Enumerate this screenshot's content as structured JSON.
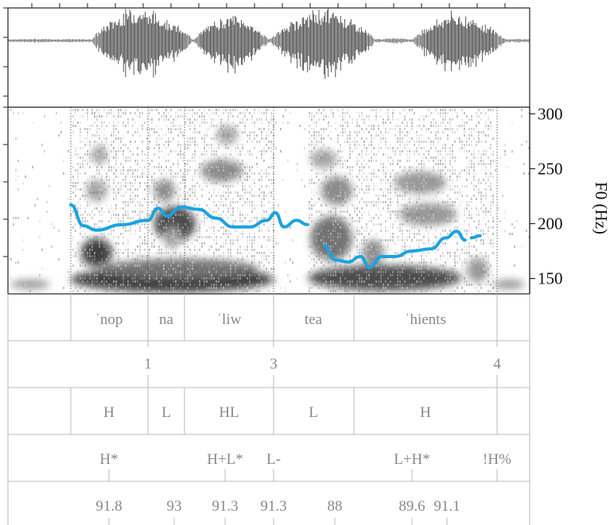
{
  "f0_axis": {
    "title": "F0 (Hz)",
    "ticks": [
      300,
      250,
      200,
      150
    ],
    "range_hz": [
      136,
      306
    ]
  },
  "waveform": {
    "bursts": [
      {
        "start": 0.0,
        "end": 0.16,
        "amp": 0.06,
        "peak": 0.08
      },
      {
        "start": 0.16,
        "end": 0.355,
        "amp": 0.9,
        "peak": 0.4
      },
      {
        "start": 0.355,
        "end": 0.5,
        "amp": 0.7,
        "peak": 0.5
      },
      {
        "start": 0.5,
        "end": 0.705,
        "amp": 0.85,
        "peak": 0.55
      },
      {
        "start": 0.705,
        "end": 0.775,
        "amp": 0.08,
        "peak": 0.5
      },
      {
        "start": 0.775,
        "end": 0.955,
        "amp": 0.75,
        "peak": 0.4
      },
      {
        "start": 0.955,
        "end": 1.0,
        "amp": 0.05,
        "peak": 0.5
      }
    ]
  },
  "f0_contour": {
    "color": "#1aa3e0",
    "segments": [
      [
        [
          0.0,
          217
        ],
        [
          0.03,
          198
        ],
        [
          0.06,
          194
        ],
        [
          0.12,
          199
        ],
        [
          0.18,
          203
        ],
        [
          0.205,
          214
        ],
        [
          0.225,
          207
        ],
        [
          0.26,
          215
        ],
        [
          0.3,
          213
        ],
        [
          0.34,
          205
        ],
        [
          0.38,
          197
        ],
        [
          0.42,
          197
        ],
        [
          0.46,
          203
        ],
        [
          0.48,
          210
        ],
        [
          0.5,
          197
        ],
        [
          0.53,
          203
        ],
        [
          0.555,
          199
        ]
      ],
      [
        [
          0.595,
          180
        ],
        [
          0.62,
          167
        ],
        [
          0.65,
          165
        ],
        [
          0.68,
          170
        ],
        [
          0.7,
          160
        ],
        [
          0.73,
          170
        ],
        [
          0.76,
          170
        ],
        [
          0.8,
          175
        ],
        [
          0.845,
          177
        ],
        [
          0.88,
          187
        ],
        [
          0.905,
          193
        ],
        [
          0.925,
          185
        ]
      ],
      [
        [
          0.94,
          187
        ],
        [
          0.96,
          189
        ]
      ]
    ]
  },
  "tiers": {
    "syllables": {
      "labels": [
        "ˈnop",
        "na",
        "ˈliw",
        "tea",
        "ˈhients"
      ]
    },
    "breaks": {
      "labels": [
        "1",
        "3",
        "4"
      ]
    },
    "tones": {
      "labels": [
        "H",
        "L",
        "HL",
        "L",
        "H"
      ]
    },
    "tobi": {
      "labels": [
        "H*",
        "H+L*",
        "L-",
        "L+H*",
        "!H%"
      ]
    },
    "values": {
      "labels": [
        "91.8",
        "93",
        "91.3",
        "91.3",
        "88",
        "89.6",
        "91.1"
      ]
    }
  }
}
